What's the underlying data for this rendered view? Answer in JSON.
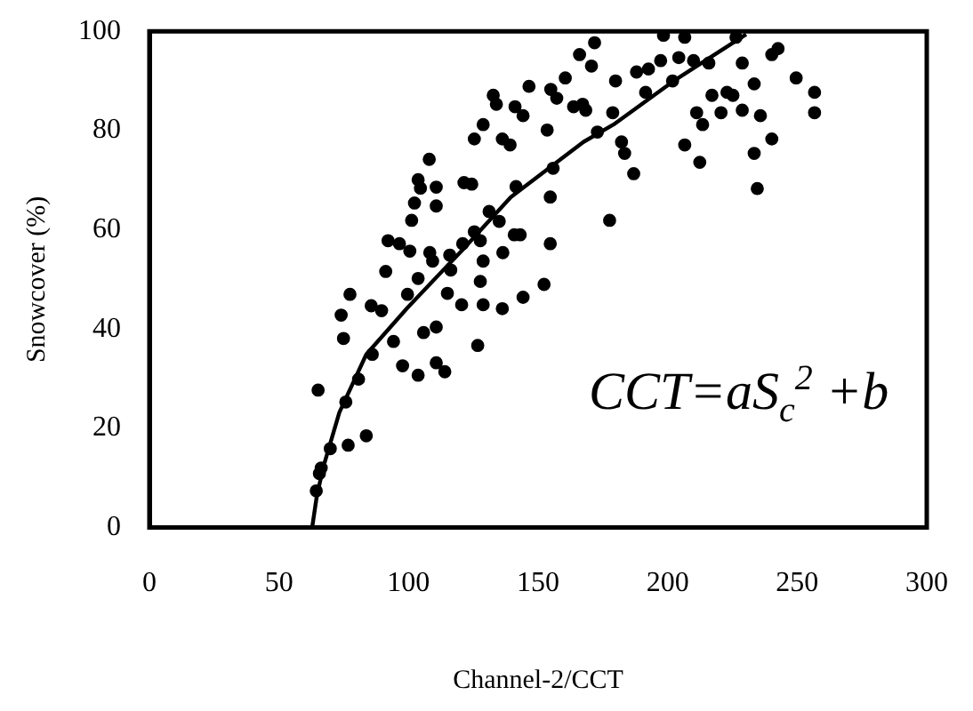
{
  "chart_data": {
    "type": "scatter",
    "xlabel": "Channel-2/CCT",
    "ylabel": "Snowcover (%)",
    "xlim": [
      0,
      300
    ],
    "xticks": [
      0,
      50,
      100,
      150,
      200,
      250,
      300
    ],
    "ylim": [
      0,
      100
    ],
    "yticks": [
      0,
      20,
      40,
      60,
      80,
      100
    ],
    "grid": false,
    "legend": false,
    "marker": "circle",
    "annotations": [
      "CCT=aS$_{c}$$^{2}$ +b"
    ],
    "series": [
      {
        "type": "scatter",
        "color": "#000000",
        "x": [
          64.4,
          65.6,
          66.3,
          65.1,
          69.8,
          75.8,
          76.7,
          80.7,
          83.7,
          74,
          74.9,
          77.4,
          86,
          85.6,
          89.6,
          91.2,
          94.2,
          92.1,
          96.5,
          100.5,
          97.7,
          99.6,
          103.7,
          103.7,
          101.2,
          102.3,
          103.7,
          104.6,
          108,
          105.8,
          110.7,
          110.7,
          114,
          110.7,
          110.7,
          108.2,
          109.3,
          115,
          116.3,
          120.5,
          115.9,
          121.4,
          124.4,
          120.9,
          125.4,
          128.8,
          126.7,
          128.8,
          127.7,
          128.8,
          127.7,
          125.4,
          131.1,
          132.7,
          133.9,
          136.2,
          139.2,
          135,
          136.4,
          136.2,
          140.8,
          143.1,
          141.5,
          144.2,
          141.1,
          144.2,
          146.5,
          153.5,
          152.3,
          154.7,
          154.7,
          155.8,
          154.9,
          160.5,
          157.2,
          163.7,
          167.2,
          168.4,
          166,
          170.6,
          172.9,
          171.8,
          177.6,
          178.8,
          179.9,
          182.2,
          183.4,
          186.9,
          188,
          191.5,
          192.6,
          198.4,
          197.3,
          201.9,
          204.3,
          206.6,
          206.6,
          210,
          211.2,
          213.5,
          212.4,
          215.9,
          217.1,
          220.6,
          222.9,
          225.2,
          226.4,
          228.8,
          228.8,
          233.4,
          235.8,
          233.4,
          234.6,
          240.2,
          240.2,
          242.6,
          249.6,
          256.7,
          256.7
        ],
        "values": [
          7.4,
          10.9,
          12,
          27.7,
          15.9,
          25.3,
          16.6,
          29.9,
          18.5,
          42.8,
          38.1,
          47,
          34.9,
          44.7,
          43.7,
          51.6,
          37.5,
          57.8,
          57.2,
          55.7,
          32.6,
          47,
          50.2,
          30.7,
          61.9,
          65.4,
          70.1,
          68.4,
          74.2,
          39.3,
          40.4,
          33.2,
          31.4,
          68.6,
          64.8,
          55.4,
          53.7,
          47.2,
          51.9,
          44.9,
          54.9,
          69.5,
          69.2,
          57.2,
          78.3,
          81.2,
          36.7,
          44.9,
          49.6,
          53.7,
          57.8,
          59.6,
          63.7,
          87.1,
          85.3,
          78.3,
          77.1,
          61.7,
          55.4,
          44.1,
          59,
          59,
          68.7,
          46.4,
          84.8,
          83,
          88.9,
          80.1,
          49,
          57.2,
          66.6,
          72.4,
          88.3,
          90.6,
          86.5,
          84.8,
          85.3,
          84.1,
          95.3,
          93,
          79.7,
          97.7,
          61.9,
          83.6,
          90,
          77.7,
          75.4,
          71.3,
          91.8,
          87.7,
          92.4,
          99.2,
          94.1,
          90,
          94.7,
          77.1,
          98.8,
          94.1,
          83.6,
          81.2,
          73.6,
          93.6,
          87.1,
          83.6,
          87.7,
          87.1,
          98.8,
          93.6,
          84.1,
          89.4,
          83,
          75.4,
          68.3,
          78.3,
          95.3,
          96.5,
          90.6,
          87.7,
          83.6
        ]
      },
      {
        "type": "line",
        "color": "#000000",
        "marker": "none",
        "line_style": "solid",
        "x": [
          62.8,
          64.5,
          67,
          73.3,
          83.7,
          99.6,
          120.9,
          139.5,
          167.5,
          179.1,
          202.4,
          230.3
        ],
        "values": [
          0,
          6,
          12,
          23.2,
          34.9,
          44.3,
          56,
          66.6,
          77.7,
          81.2,
          90,
          99.4
        ]
      }
    ]
  }
}
